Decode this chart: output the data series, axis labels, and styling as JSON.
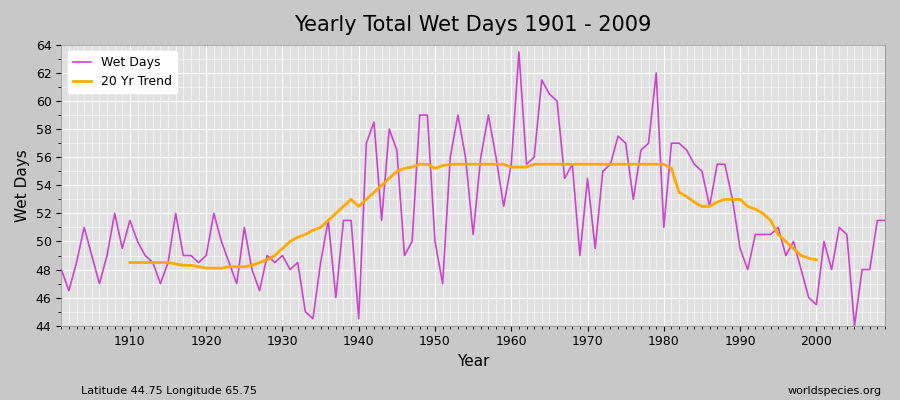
{
  "title": "Yearly Total Wet Days 1901 - 2009",
  "xlabel": "Year",
  "ylabel": "Wet Days",
  "subtitle_left": "Latitude 44.75 Longitude 65.75",
  "subtitle_right": "worldspecies.org",
  "ylim": [
    44,
    64
  ],
  "yticks": [
    44,
    46,
    48,
    50,
    52,
    54,
    56,
    58,
    60,
    62,
    64
  ],
  "background_color": "#e0e0e0",
  "wet_days_color": "#cc44cc",
  "trend_color": "#ffaa00",
  "wet_days_label": "Wet Days",
  "trend_label": "20 Yr Trend",
  "years": [
    1901,
    1902,
    1903,
    1904,
    1905,
    1906,
    1907,
    1908,
    1909,
    1910,
    1911,
    1912,
    1913,
    1914,
    1915,
    1916,
    1917,
    1918,
    1919,
    1920,
    1921,
    1922,
    1923,
    1924,
    1925,
    1926,
    1927,
    1928,
    1929,
    1930,
    1931,
    1932,
    1933,
    1934,
    1935,
    1936,
    1937,
    1938,
    1939,
    1940,
    1941,
    1942,
    1943,
    1944,
    1945,
    1946,
    1947,
    1948,
    1949,
    1950,
    1951,
    1952,
    1953,
    1954,
    1955,
    1956,
    1957,
    1958,
    1959,
    1960,
    1961,
    1962,
    1963,
    1964,
    1965,
    1966,
    1967,
    1968,
    1969,
    1970,
    1971,
    1972,
    1973,
    1974,
    1975,
    1976,
    1977,
    1978,
    1979,
    1980,
    1981,
    1982,
    1983,
    1984,
    1985,
    1986,
    1987,
    1988,
    1989,
    1990,
    1991,
    1992,
    1993,
    1994,
    1995,
    1996,
    1997,
    1998,
    1999,
    2000,
    2001,
    2002,
    2003,
    2004,
    2005,
    2006,
    2007,
    2008,
    2009
  ],
  "wet_days": [
    48.0,
    46.5,
    48.5,
    51.0,
    49.0,
    47.0,
    49.0,
    52.0,
    49.5,
    51.5,
    50.0,
    49.0,
    48.5,
    47.0,
    48.5,
    52.0,
    49.0,
    49.0,
    48.5,
    49.0,
    52.0,
    50.0,
    48.5,
    47.0,
    51.0,
    48.0,
    46.5,
    49.0,
    48.5,
    49.0,
    48.0,
    48.5,
    45.0,
    44.5,
    48.5,
    51.5,
    46.0,
    51.5,
    51.5,
    44.5,
    57.0,
    58.5,
    51.5,
    58.0,
    56.5,
    49.0,
    50.0,
    59.0,
    59.0,
    50.0,
    47.0,
    56.0,
    59.0,
    56.0,
    50.5,
    56.0,
    59.0,
    56.0,
    52.5,
    55.5,
    63.5,
    55.5,
    56.0,
    61.5,
    60.5,
    60.0,
    54.5,
    55.5,
    49.0,
    54.5,
    49.5,
    55.0,
    55.5,
    57.5,
    57.0,
    53.0,
    56.5,
    57.0,
    62.0,
    51.0,
    57.0,
    57.0,
    56.5,
    55.5,
    55.0,
    52.5,
    55.5,
    55.5,
    53.0,
    49.5,
    48.0,
    50.5,
    50.5,
    50.5,
    51.0,
    49.0,
    50.0,
    48.0,
    46.0,
    45.5,
    50.0,
    48.0,
    51.0,
    50.5,
    44.0,
    48.0,
    48.0,
    51.5,
    51.5
  ],
  "trend_years": [
    1910,
    1911,
    1912,
    1913,
    1914,
    1915,
    1916,
    1917,
    1918,
    1919,
    1920,
    1921,
    1922,
    1923,
    1924,
    1925,
    1926,
    1927,
    1928,
    1929,
    1930,
    1931,
    1932,
    1933,
    1934,
    1935,
    1936,
    1937,
    1938,
    1939,
    1940,
    1941,
    1942,
    1943,
    1944,
    1945,
    1946,
    1947,
    1948,
    1949,
    1950,
    1951,
    1952,
    1953,
    1954,
    1955,
    1956,
    1957,
    1958,
    1959,
    1960,
    1961,
    1962,
    1963,
    1964,
    1965,
    1966,
    1967,
    1968,
    1969,
    1970,
    1971,
    1972,
    1973,
    1974,
    1975,
    1976,
    1977,
    1978,
    1979,
    1980,
    1981,
    1982,
    1983,
    1984,
    1985,
    1986,
    1987,
    1988,
    1989,
    1990,
    1991,
    1992,
    1993,
    1994,
    1995,
    1996,
    1997,
    1998,
    1999,
    2000
  ],
  "trend_values": [
    48.5,
    48.5,
    48.5,
    48.5,
    48.5,
    48.5,
    48.4,
    48.3,
    48.3,
    48.2,
    48.1,
    48.1,
    48.1,
    48.2,
    48.2,
    48.2,
    48.3,
    48.5,
    48.7,
    49.0,
    49.5,
    50.0,
    50.3,
    50.5,
    50.8,
    51.0,
    51.5,
    52.0,
    52.5,
    53.0,
    52.5,
    53.0,
    53.5,
    54.0,
    54.5,
    55.0,
    55.2,
    55.3,
    55.5,
    55.5,
    55.2,
    55.4,
    55.5,
    55.5,
    55.5,
    55.5,
    55.5,
    55.5,
    55.5,
    55.5,
    55.3,
    55.3,
    55.3,
    55.5,
    55.5,
    55.5,
    55.5,
    55.5,
    55.5,
    55.5,
    55.5,
    55.5,
    55.5,
    55.5,
    55.5,
    55.5,
    55.5,
    55.5,
    55.5,
    55.5,
    55.5,
    55.2,
    53.5,
    53.2,
    52.8,
    52.5,
    52.5,
    52.8,
    53.0,
    53.0,
    53.0,
    52.5,
    52.3,
    52.0,
    51.5,
    50.5,
    50.0,
    49.5,
    49.0,
    48.8,
    48.7
  ]
}
